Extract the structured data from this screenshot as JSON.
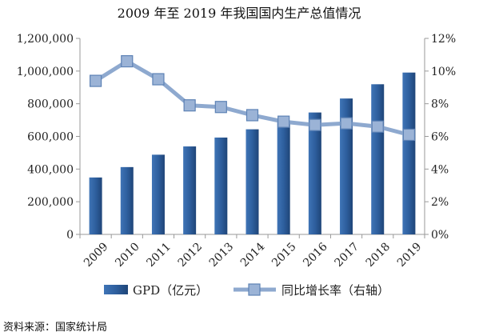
{
  "chart_data": {
    "type": "bar",
    "title": "2009 年至 2019 年我国国内生产总值情况",
    "categories": [
      "2009",
      "2010",
      "2011",
      "2012",
      "2013",
      "2014",
      "2015",
      "2016",
      "2017",
      "2018",
      "2019"
    ],
    "series": [
      {
        "name": "GPD（亿元）",
        "type": "bar",
        "axis": "left",
        "color": "#2e5f9e",
        "values": [
          348518,
          412119,
          487940,
          538580,
          592963,
          643563,
          688858,
          746395,
          832036,
          919281,
          990865
        ]
      },
      {
        "name": "同比增长率（右轴）",
        "type": "line",
        "axis": "right",
        "color": "#8ea9cf",
        "values": [
          9.4,
          10.6,
          9.5,
          7.9,
          7.8,
          7.3,
          6.9,
          6.7,
          6.8,
          6.6,
          6.1
        ]
      }
    ],
    "y_left": {
      "ylim": [
        0,
        1200000
      ],
      "ticks": [
        0,
        200000,
        400000,
        600000,
        800000,
        1000000,
        1200000
      ],
      "tick_labels": [
        "0",
        "200,000",
        "400,000",
        "600,000",
        "800,000",
        "1,000,000",
        "1,200,000"
      ]
    },
    "y_right": {
      "ylim": [
        0,
        12
      ],
      "ticks": [
        0,
        2,
        4,
        6,
        8,
        10,
        12
      ],
      "tick_labels": [
        "0%",
        "2%",
        "4%",
        "6%",
        "8%",
        "10%",
        "12%"
      ]
    },
    "grid": false,
    "legend": "bottom"
  },
  "source": "资料来源：国家统计局"
}
